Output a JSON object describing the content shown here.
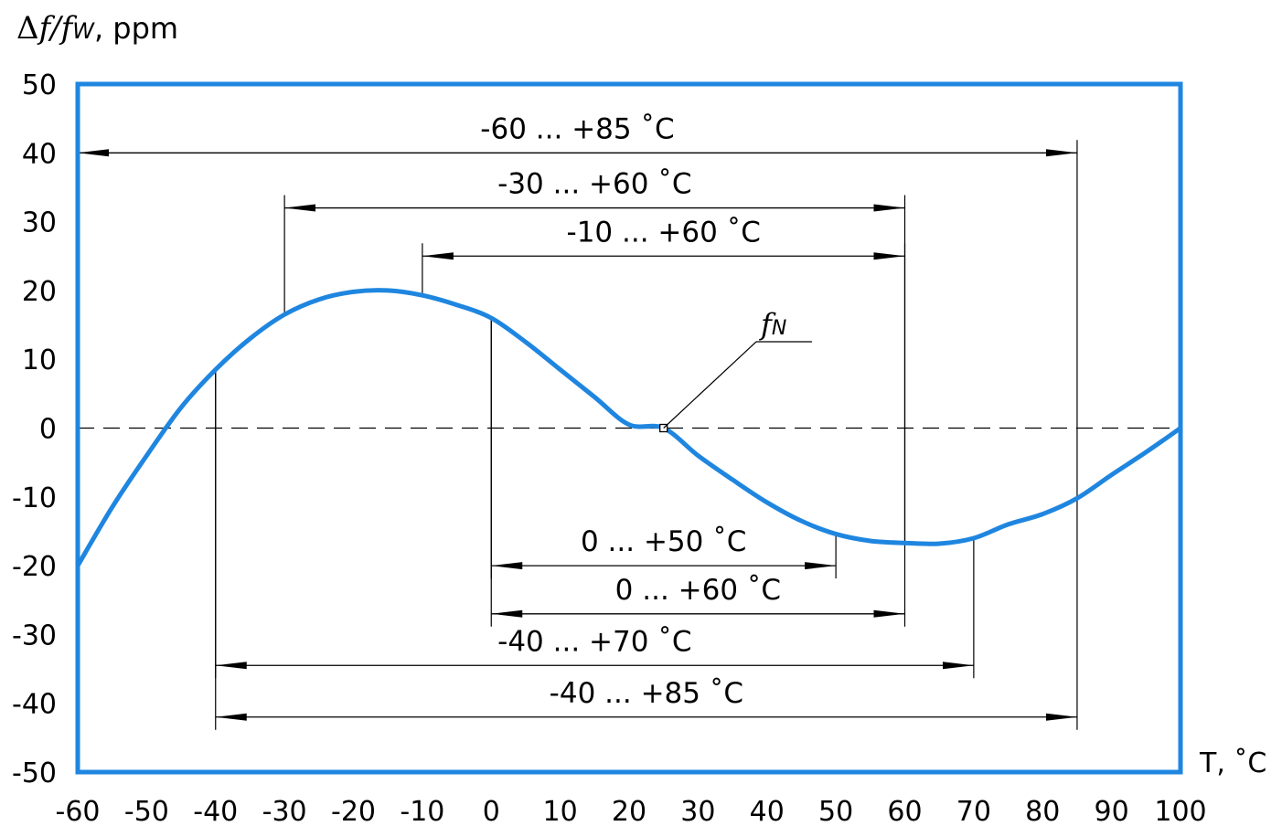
{
  "chart_data": {
    "type": "line",
    "title": "",
    "ylabel": {
      "pre": "Δ",
      "f1": "f",
      "slash": "/",
      "f2": "f",
      "sub": "W",
      "unit": ", ppm"
    },
    "xlabel": "T, ˚C",
    "xlim": [
      -60,
      100
    ],
    "ylim": [
      -50,
      50
    ],
    "x_ticks": [
      -60,
      -50,
      -40,
      -30,
      -20,
      -10,
      0,
      10,
      20,
      30,
      40,
      50,
      60,
      70,
      80,
      90,
      100
    ],
    "y_ticks": [
      50,
      40,
      30,
      20,
      10,
      0,
      -10,
      -20,
      -30,
      -40,
      -50
    ],
    "grid": false,
    "frame_color": "#1f86e0",
    "series": [
      {
        "color": "#1f86e0",
        "x": [
          -60,
          -55,
          -50,
          -45,
          -40,
          -35,
          -30,
          -25,
          -20,
          -15,
          -10,
          -5,
          0,
          5,
          10,
          15,
          20,
          25,
          30,
          35,
          40,
          45,
          50,
          55,
          60,
          65,
          70,
          75,
          80,
          85,
          90,
          95,
          100
        ],
        "y": [
          -20,
          -11.5,
          -4,
          3,
          8.5,
          13,
          16.5,
          18.7,
          19.8,
          20,
          19.3,
          17.9,
          16,
          12.5,
          8.5,
          4.5,
          0.5,
          0,
          -4,
          -7.5,
          -10.8,
          -13.5,
          -15.4,
          -16.4,
          -16.7,
          -16.8,
          -16,
          -14,
          -12.5,
          -10.2,
          -6.8,
          -3.5,
          0
        ]
      }
    ],
    "reference_line": {
      "y": 0,
      "style": "dashed"
    },
    "annotation": {
      "pre": "f",
      "sub": "N",
      "x": 25,
      "y": 0
    },
    "ranges": [
      {
        "label": "-60 ... +85 ˚C",
        "from": -60,
        "to": 85,
        "y": 40
      },
      {
        "label": "-30 ... +60 ˚C",
        "from": -30,
        "to": 60,
        "y": 32
      },
      {
        "label": "-10 ... +60 ˚C",
        "from": -10,
        "to": 60,
        "y": 25
      },
      {
        "label": "0 ... +50 ˚C",
        "from": 0,
        "to": 50,
        "y": -20
      },
      {
        "label": "0 ... +60 ˚C",
        "from": 0,
        "to": 60,
        "y": -27
      },
      {
        "label": "-40 ... +70 ˚C",
        "from": -40,
        "to": 70,
        "y": -34.5
      },
      {
        "label": "-40 ... +85 ˚C",
        "from": -40,
        "to": 85,
        "y": -42
      }
    ]
  }
}
